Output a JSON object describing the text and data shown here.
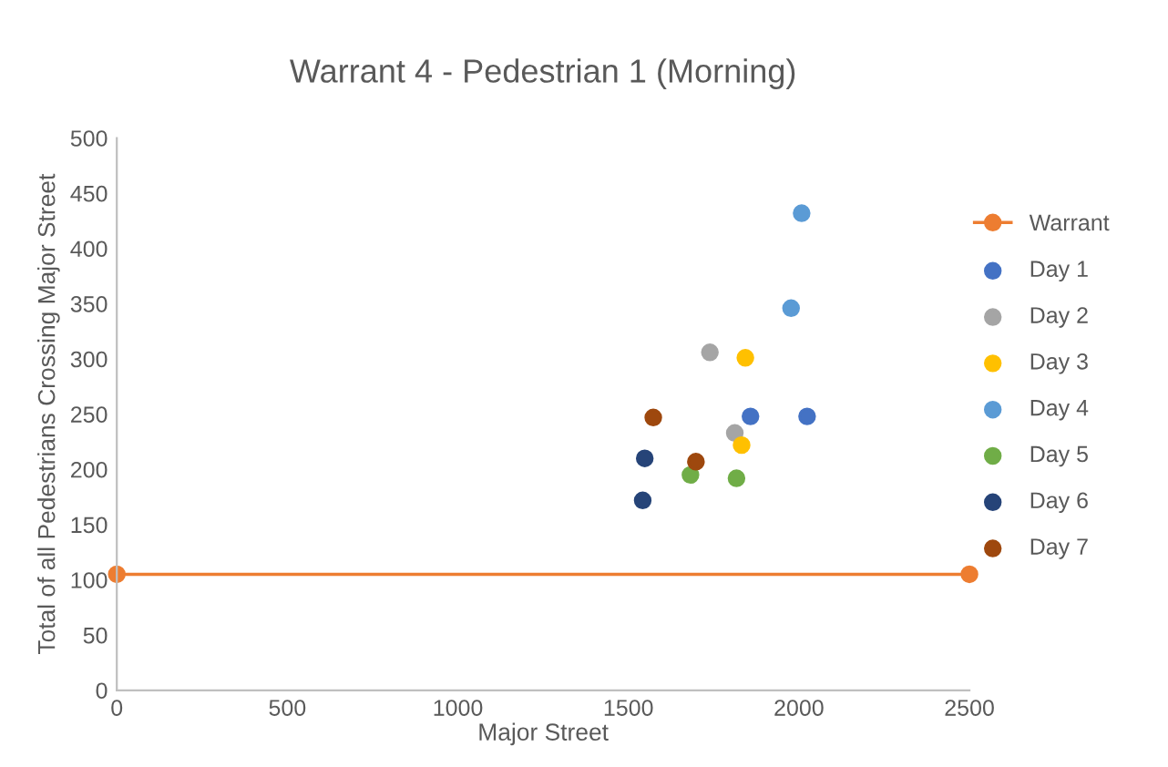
{
  "chart_data": {
    "type": "scatter",
    "title": "Warrant 4 - Pedestrian 1 (Morning)",
    "xlabel": "Major Street",
    "ylabel": "Total of all Pedestrians Crossing Major Street",
    "xlim": [
      0,
      2500
    ],
    "xticks": [
      0,
      500,
      1000,
      1500,
      2000,
      2500
    ],
    "ylim": [
      0,
      500
    ],
    "yticks": [
      0,
      50,
      100,
      150,
      200,
      250,
      300,
      350,
      400,
      450,
      500
    ],
    "grid": false,
    "legend": "right",
    "marker": "circle",
    "series": [
      {
        "name": "Warrant",
        "type": "line",
        "color": "#ed7d31",
        "x": [
          0,
          2500
        ],
        "values": [
          105,
          105
        ]
      },
      {
        "name": "Day 1",
        "color": "#4472c4",
        "x": [
          1858,
          2024
        ],
        "values": [
          248,
          248
        ]
      },
      {
        "name": "Day 2",
        "color": "#a5a5a5",
        "x": [
          1739,
          1812
        ],
        "values": [
          306,
          233
        ]
      },
      {
        "name": "Day 3",
        "color": "#ffc000",
        "x": [
          1843,
          1832
        ],
        "values": [
          301,
          222
        ]
      },
      {
        "name": "Day 4",
        "color": "#5b9bd5",
        "x": [
          2008,
          1977
        ],
        "values": [
          432,
          346
        ]
      },
      {
        "name": "Day 5",
        "color": "#70ad47",
        "x": [
          1682,
          1817
        ],
        "values": [
          195,
          192
        ]
      },
      {
        "name": "Day 6",
        "color": "#264478",
        "x": [
          1548,
          1542
        ],
        "values": [
          210,
          172
        ]
      },
      {
        "name": "Day 7",
        "color": "#9e480e",
        "x": [
          1573,
          1698
        ],
        "values": [
          247,
          207
        ]
      }
    ]
  }
}
